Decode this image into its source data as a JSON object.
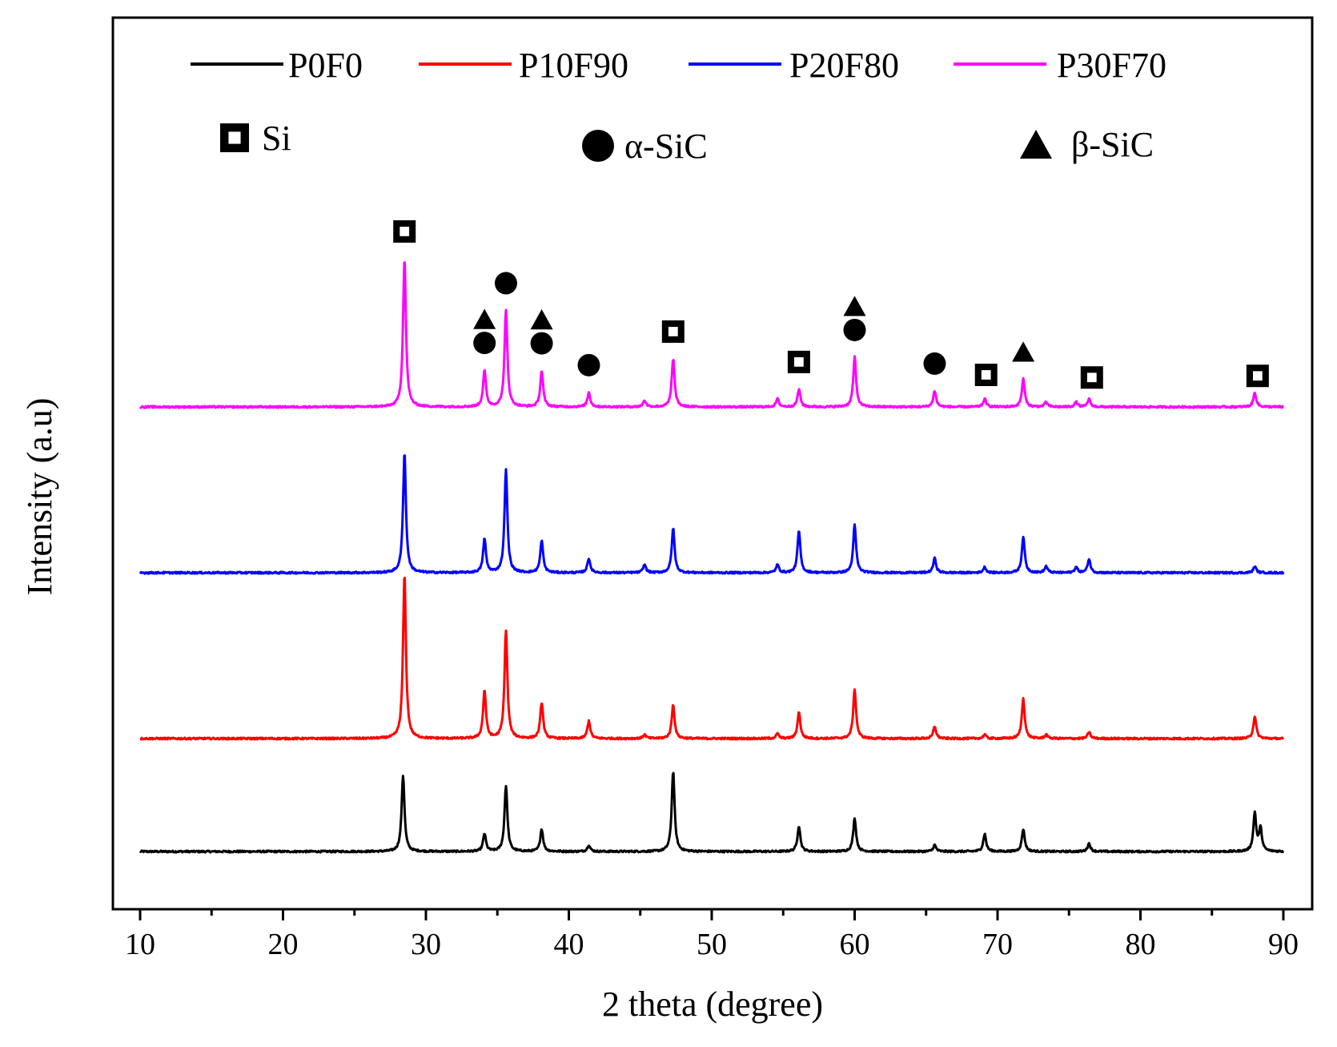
{
  "chart_data": {
    "type": "line",
    "xlabel": "2 theta (degree)",
    "ylabel": "Intensity (a.u)",
    "xlim": [
      10,
      90
    ],
    "x_ticks": [
      "10",
      "20",
      "30",
      "40",
      "50",
      "60",
      "70",
      "80",
      "90"
    ],
    "y_ticks_shown": false,
    "grid": false,
    "legend_position": "top",
    "series": [
      {
        "name": "P0F0",
        "color": "#000000",
        "peaks": [
          {
            "x": 28.4,
            "h": 95
          },
          {
            "x": 34.1,
            "h": 22
          },
          {
            "x": 35.6,
            "h": 82
          },
          {
            "x": 38.1,
            "h": 28
          },
          {
            "x": 41.4,
            "h": 8
          },
          {
            "x": 47.3,
            "h": 100
          },
          {
            "x": 56.1,
            "h": 32
          },
          {
            "x": 60.0,
            "h": 42
          },
          {
            "x": 65.6,
            "h": 8
          },
          {
            "x": 69.1,
            "h": 22
          },
          {
            "x": 71.8,
            "h": 28
          },
          {
            "x": 76.4,
            "h": 10
          },
          {
            "x": 88.0,
            "h": 48
          },
          {
            "x": 88.4,
            "h": 28
          }
        ]
      },
      {
        "name": "P10F90",
        "color": "#ff0000",
        "peaks": [
          {
            "x": 28.5,
            "h": 205
          },
          {
            "x": 34.1,
            "h": 60
          },
          {
            "x": 35.6,
            "h": 135
          },
          {
            "x": 38.1,
            "h": 45
          },
          {
            "x": 41.4,
            "h": 22
          },
          {
            "x": 45.3,
            "h": 5
          },
          {
            "x": 47.3,
            "h": 42
          },
          {
            "x": 54.6,
            "h": 6
          },
          {
            "x": 56.1,
            "h": 33
          },
          {
            "x": 60.0,
            "h": 62
          },
          {
            "x": 65.6,
            "h": 15
          },
          {
            "x": 69.1,
            "h": 5
          },
          {
            "x": 71.8,
            "h": 50
          },
          {
            "x": 73.4,
            "h": 5
          },
          {
            "x": 76.4,
            "h": 8
          },
          {
            "x": 88.0,
            "h": 28
          }
        ]
      },
      {
        "name": "P20F80",
        "color": "#0000ff",
        "peaks": [
          {
            "x": 28.5,
            "h": 150
          },
          {
            "x": 34.1,
            "h": 42
          },
          {
            "x": 35.6,
            "h": 128
          },
          {
            "x": 38.1,
            "h": 40
          },
          {
            "x": 41.4,
            "h": 18
          },
          {
            "x": 45.3,
            "h": 10
          },
          {
            "x": 47.3,
            "h": 55
          },
          {
            "x": 54.6,
            "h": 10
          },
          {
            "x": 56.1,
            "h": 52
          },
          {
            "x": 60.0,
            "h": 60
          },
          {
            "x": 65.6,
            "h": 18
          },
          {
            "x": 69.1,
            "h": 7
          },
          {
            "x": 71.8,
            "h": 45
          },
          {
            "x": 73.4,
            "h": 8
          },
          {
            "x": 75.5,
            "h": 7
          },
          {
            "x": 76.4,
            "h": 17
          },
          {
            "x": 88.0,
            "h": 8
          }
        ]
      },
      {
        "name": "P30F70",
        "color": "#ff00ff",
        "peaks": [
          {
            "x": 28.5,
            "h": 185
          },
          {
            "x": 34.1,
            "h": 45
          },
          {
            "x": 35.6,
            "h": 120
          },
          {
            "x": 38.1,
            "h": 45
          },
          {
            "x": 41.4,
            "h": 18
          },
          {
            "x": 45.3,
            "h": 8
          },
          {
            "x": 47.3,
            "h": 60
          },
          {
            "x": 54.6,
            "h": 10
          },
          {
            "x": 56.1,
            "h": 22
          },
          {
            "x": 60.0,
            "h": 62
          },
          {
            "x": 65.6,
            "h": 20
          },
          {
            "x": 69.1,
            "h": 10
          },
          {
            "x": 71.8,
            "h": 35
          },
          {
            "x": 73.4,
            "h": 6
          },
          {
            "x": 75.5,
            "h": 6
          },
          {
            "x": 76.4,
            "h": 10
          },
          {
            "x": 88.0,
            "h": 18
          }
        ]
      }
    ],
    "phase_legend": [
      {
        "symbol": "square",
        "label": "Si"
      },
      {
        "symbol": "circle",
        "label": "α-SiC"
      },
      {
        "symbol": "triangle",
        "label": "β-SiC"
      }
    ],
    "peak_annotations": [
      {
        "x": 28.5,
        "symbols": [
          "square"
        ]
      },
      {
        "x": 34.1,
        "symbols": [
          "triangle",
          "circle"
        ]
      },
      {
        "x": 35.6,
        "symbols": [
          "circle"
        ]
      },
      {
        "x": 38.1,
        "symbols": [
          "triangle",
          "circle"
        ]
      },
      {
        "x": 41.4,
        "symbols": [
          "circle"
        ]
      },
      {
        "x": 47.3,
        "symbols": [
          "square"
        ]
      },
      {
        "x": 56.1,
        "symbols": [
          "square"
        ]
      },
      {
        "x": 60.0,
        "symbols": [
          "triangle",
          "circle"
        ]
      },
      {
        "x": 65.6,
        "symbols": [
          "circle"
        ]
      },
      {
        "x": 69.2,
        "symbols": [
          "square"
        ]
      },
      {
        "x": 71.8,
        "symbols": [
          "triangle"
        ]
      },
      {
        "x": 76.6,
        "symbols": [
          "square"
        ]
      },
      {
        "x": 88.2,
        "symbols": [
          "square"
        ]
      }
    ]
  }
}
